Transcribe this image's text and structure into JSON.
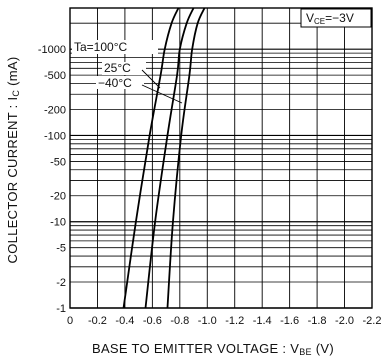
{
  "chart_data": {
    "type": "line",
    "xlabel": "BASE TO EMITTER VOLTAGE : V",
    "xlabel_sub": "BE",
    "xlabel_unit": " (V)",
    "ylabel": "COLLECTOR CURRENT : I",
    "ylabel_sub": "C",
    "ylabel_unit": " (mA)",
    "x_axis": {
      "range": [
        0,
        -2.2
      ],
      "ticks": [
        0,
        -0.2,
        -0.4,
        -0.6,
        -0.8,
        -1.0,
        -1.2,
        -1.4,
        -1.6,
        -1.8,
        -2.0,
        -2.2
      ],
      "tick_labels": [
        "0",
        "-0.2",
        "-0.4",
        "-0.6",
        "-0.8",
        "-1.0",
        "-1.2",
        "-1.4",
        "-1.6",
        "-1.8",
        "-2.0",
        "-2.2"
      ]
    },
    "y_axis": {
      "scale": "log",
      "range": [
        -1,
        -3000
      ],
      "tick_values": [
        -1,
        -2,
        -5,
        -10,
        -20,
        -50,
        -100,
        -200,
        -500,
        -1000
      ],
      "tick_labels": [
        "-1",
        "-2",
        "-5",
        "-10",
        "-20",
        "-50",
        "-100",
        "-200",
        "-500",
        "-1000"
      ]
    },
    "grid": true,
    "condition": {
      "prefix": "V",
      "sub": "CE",
      "value": "=−3V"
    },
    "series": [
      {
        "name": "Ta=100°C",
        "points": [
          [
            -0.39,
            -1
          ],
          [
            -0.48,
            -10
          ],
          [
            -0.58,
            -100
          ],
          [
            -0.66,
            -500
          ],
          [
            -0.69,
            -1000
          ],
          [
            -0.74,
            -2000
          ],
          [
            -0.79,
            -3000
          ]
        ]
      },
      {
        "name": "25°C",
        "points": [
          [
            -0.55,
            -1
          ],
          [
            -0.62,
            -10
          ],
          [
            -0.71,
            -100
          ],
          [
            -0.78,
            -500
          ],
          [
            -0.8,
            -1000
          ],
          [
            -0.85,
            -2000
          ],
          [
            -0.9,
            -3000
          ]
        ]
      },
      {
        "name": "−40°C",
        "points": [
          [
            -0.71,
            -1
          ],
          [
            -0.75,
            -10
          ],
          [
            -0.81,
            -100
          ],
          [
            -0.87,
            -500
          ],
          [
            -0.89,
            -1000
          ],
          [
            -0.93,
            -2000
          ],
          [
            -0.98,
            -3000
          ]
        ]
      }
    ]
  }
}
